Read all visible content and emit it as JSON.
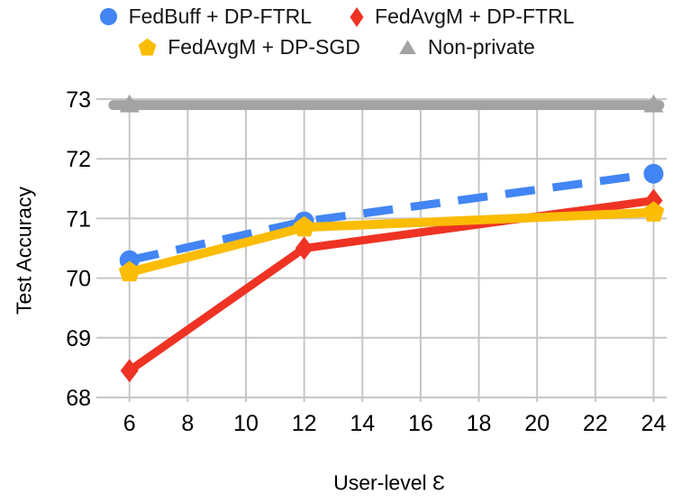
{
  "chart_data": {
    "type": "line",
    "title": "",
    "xlabel": "User-level Ɛ",
    "ylabel": "Test Accuracy",
    "x_ticks": [
      6,
      8,
      10,
      12,
      14,
      16,
      18,
      20,
      22,
      24
    ],
    "y_ticks": [
      68,
      69,
      70,
      71,
      72,
      73
    ],
    "xlim": [
      5.05,
      24.45
    ],
    "ylim": [
      68,
      73
    ],
    "grid": true,
    "legend_position": "top",
    "series": [
      {
        "name": "FedBuff + DP-FTRL",
        "color": "#4285F4",
        "line_style": "dashed",
        "marker": "circle",
        "line_width": 9,
        "x": [
          6,
          12,
          24
        ],
        "y": [
          70.3,
          70.95,
          71.75
        ]
      },
      {
        "name": "FedAvgM + DP-FTRL",
        "color": "#EE3324",
        "line_style": "solid",
        "marker": "diamond",
        "line_width": 9,
        "x": [
          6,
          12,
          24
        ],
        "y": [
          68.45,
          70.5,
          71.3
        ]
      },
      {
        "name": "FedAvgM + DP-SGD",
        "color": "#FBBC04",
        "line_style": "solid",
        "marker": "pentagon",
        "line_width": 10,
        "x": [
          6,
          12,
          24
        ],
        "y": [
          70.1,
          70.85,
          71.1
        ]
      },
      {
        "name": "Non-private",
        "color": "#A3A3A3",
        "line_style": "solid",
        "marker": "triangle",
        "line_width": 11,
        "x": [
          6,
          24
        ],
        "y": [
          72.9,
          72.9
        ],
        "line_span": [
          5.45,
          24.2
        ]
      }
    ]
  }
}
